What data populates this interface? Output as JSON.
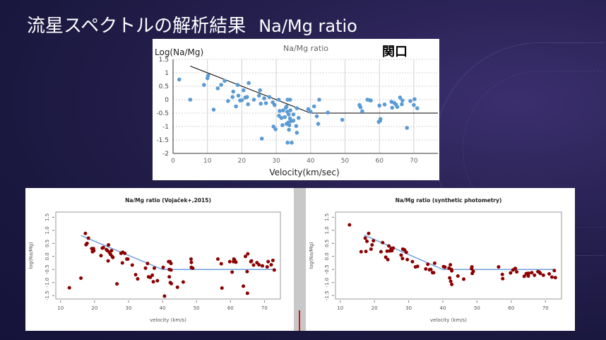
{
  "slide": {
    "title": "流星スペクトルの解析結果",
    "title_suffix": "Na/Mg ratio"
  },
  "colors": {
    "top_points": "#5b9bd5",
    "r_points": "#8b0000",
    "fit_line_top": "#000000",
    "fit_line_r": "#6fa0dc"
  },
  "chart_data": [
    {
      "type": "scatter",
      "title": "Na/Mg ratio",
      "annotation": "関口",
      "xlabel": "Velocity(km/sec)",
      "ylabel": "Log(Na/Mg)",
      "xlim": [
        0,
        77
      ],
      "ylim": [
        -2,
        1.5
      ],
      "xticks": [
        0,
        10,
        20,
        30,
        40,
        50,
        60,
        70
      ],
      "yticks": [
        -2,
        -1.5,
        -1,
        -0.5,
        0,
        0.5,
        1,
        1.5
      ],
      "grid": true,
      "fit_line": [
        [
          5,
          1.25
        ],
        [
          40,
          -0.5
        ],
        [
          77,
          -0.5
        ]
      ],
      "points": [
        [
          1.8,
          0.75
        ],
        [
          5,
          0
        ],
        [
          9,
          0.55
        ],
        [
          10,
          0.8
        ],
        [
          10.2,
          0.9
        ],
        [
          11.8,
          -0.37
        ],
        [
          13,
          0.42
        ],
        [
          14,
          0.55
        ],
        [
          15,
          0.7
        ],
        [
          16,
          -0.05
        ],
        [
          17.3,
          0.1
        ],
        [
          17.5,
          0.3
        ],
        [
          18.3,
          -0.25
        ],
        [
          18.8,
          0.55
        ],
        [
          19,
          0.15
        ],
        [
          19.5,
          -0.03
        ],
        [
          20,
          -0.02
        ],
        [
          20.5,
          0.35
        ],
        [
          21,
          0.08
        ],
        [
          21.5,
          0.1
        ],
        [
          21.8,
          -0.17
        ],
        [
          22,
          0.62
        ],
        [
          23.5,
          0
        ],
        [
          25,
          0.15
        ],
        [
          25.3,
          0.35
        ],
        [
          25.5,
          -0.15
        ],
        [
          25.8,
          -1.45
        ],
        [
          26.5,
          0.05
        ],
        [
          27,
          -0.13
        ],
        [
          28,
          0.1
        ],
        [
          29,
          -0.1
        ],
        [
          29.2,
          -1
        ],
        [
          29.5,
          -0.2
        ],
        [
          29.8,
          -1.1
        ],
        [
          30.7,
          0
        ],
        [
          30.8,
          -0.6
        ],
        [
          31,
          -0.42
        ],
        [
          31.5,
          -0.68
        ],
        [
          31.8,
          -0.95
        ],
        [
          32,
          -0.4
        ],
        [
          32.5,
          -0.65
        ],
        [
          32.8,
          -0.3
        ],
        [
          33,
          -0.25
        ],
        [
          33,
          -0.9
        ],
        [
          33.2,
          -0.45
        ],
        [
          33.3,
          -1.6
        ],
        [
          33.3,
          0
        ],
        [
          33.5,
          -0.85
        ],
        [
          33.6,
          -0.55
        ],
        [
          33.7,
          -1.12
        ],
        [
          33.8,
          -0.95
        ],
        [
          34,
          -0.7
        ],
        [
          34,
          0
        ],
        [
          34.1,
          -0.4
        ],
        [
          34.3,
          -0.8
        ],
        [
          34.5,
          -1.6
        ],
        [
          35,
          -0.55
        ],
        [
          35,
          -0.78
        ],
        [
          35.8,
          -0.98
        ],
        [
          36,
          -0.32
        ],
        [
          36,
          -1.23
        ],
        [
          36.5,
          -0.68
        ],
        [
          39.3,
          -0.35
        ],
        [
          40,
          -0.45
        ],
        [
          41,
          -0.25
        ],
        [
          41.8,
          -0.62
        ],
        [
          42.2,
          -0.9
        ],
        [
          42.5,
          0
        ],
        [
          45,
          -0.48
        ],
        [
          49.2,
          -0.75
        ],
        [
          54.2,
          -0.2
        ],
        [
          54.5,
          -0.28
        ],
        [
          55,
          -0.43
        ],
        [
          56.5,
          0
        ],
        [
          57.2,
          -0.02
        ],
        [
          57.5,
          -0.03
        ],
        [
          59.8,
          -0.83
        ],
        [
          60,
          -0.22
        ],
        [
          60.2,
          -0.78
        ],
        [
          60.3,
          -0.72
        ],
        [
          61.5,
          -0.18
        ],
        [
          63.5,
          -0.08
        ],
        [
          63.7,
          -0.3
        ],
        [
          64.3,
          -0.12
        ],
        [
          64.8,
          -0.18
        ],
        [
          65.2,
          -0.27
        ],
        [
          66,
          0.08
        ],
        [
          66.5,
          -0.17
        ],
        [
          66.7,
          -0.03
        ],
        [
          68,
          -1.05
        ],
        [
          69,
          -0.05
        ],
        [
          70,
          -0.2
        ],
        [
          70.2,
          0.02
        ],
        [
          71,
          -0.32
        ]
      ]
    },
    {
      "type": "scatter",
      "title": "Na/Mg ratio (Vojaček+,2015)",
      "xlabel": "velocity (km/s)",
      "ylabel": "log(Na/Mg)",
      "xlim": [
        8.6,
        74.7
      ],
      "ylim": [
        -1.63,
        1.7
      ],
      "xticks": [
        10,
        20,
        30,
        40,
        50,
        60,
        70
      ],
      "yticks": [
        -1.5,
        -1.0,
        -0.5,
        0.0,
        0.5,
        1.0,
        1.5
      ],
      "grid": false,
      "fit_line": [
        [
          16,
          0.8
        ],
        [
          40,
          -0.5
        ],
        [
          72.5,
          -0.5
        ]
      ],
      "points": [
        [
          12.6,
          -1.2
        ],
        [
          16,
          -0.83
        ],
        [
          17.3,
          0.88
        ],
        [
          17.5,
          0.45
        ],
        [
          17.8,
          0.5
        ],
        [
          18.2,
          0.7
        ],
        [
          19.2,
          0.3
        ],
        [
          19.4,
          0.18
        ],
        [
          19.7,
          0.3
        ],
        [
          19.8,
          0.22
        ],
        [
          21.9,
          0.03
        ],
        [
          22.3,
          0.32
        ],
        [
          22.6,
          0.34
        ],
        [
          23.5,
          0.26
        ],
        [
          23.8,
          0.22
        ],
        [
          24,
          -0.17
        ],
        [
          24.1,
          0.44
        ],
        [
          24.4,
          0.15
        ],
        [
          24.7,
          0.08
        ],
        [
          25,
          0.22
        ],
        [
          25.2,
          0
        ],
        [
          25.4,
          -0.04
        ],
        [
          26.6,
          -1.05
        ],
        [
          27.8,
          0.12
        ],
        [
          28.2,
          -0.25
        ],
        [
          28.3,
          0.16
        ],
        [
          28.9,
          0.12
        ],
        [
          29.5,
          -0.1
        ],
        [
          29.8,
          -0.1
        ],
        [
          31.1,
          -0.33
        ],
        [
          32.1,
          -0.7
        ],
        [
          32.7,
          -0.86
        ],
        [
          35,
          -0.45
        ],
        [
          35.6,
          -0.27
        ],
        [
          35.9,
          -0.78
        ],
        [
          36.4,
          -0.8
        ],
        [
          37,
          -0.72
        ],
        [
          37.3,
          -0.97
        ],
        [
          37.6,
          -0.45
        ],
        [
          38.5,
          -0.93
        ],
        [
          40.2,
          -0.42
        ],
        [
          40.6,
          -1.52
        ],
        [
          41.8,
          -0.2
        ],
        [
          42,
          -0.5
        ],
        [
          42,
          -0.78
        ],
        [
          42.2,
          -0.2
        ],
        [
          42.3,
          -1
        ],
        [
          42.5,
          -0.27
        ],
        [
          42.5,
          -0.52
        ],
        [
          42.6,
          -1.04
        ],
        [
          44.4,
          -1.18
        ],
        [
          46.1,
          -0.98
        ],
        [
          48.4,
          -0.1
        ],
        [
          48.5,
          -0.42
        ],
        [
          48.5,
          -0.23
        ],
        [
          48.9,
          -0.45
        ],
        [
          56.3,
          -0.1
        ],
        [
          57.3,
          -0.28
        ],
        [
          57.5,
          -1.21
        ],
        [
          59.8,
          -0.2
        ],
        [
          60.5,
          -0.6
        ],
        [
          60.9,
          -0.2
        ],
        [
          61,
          -0.1
        ],
        [
          61.2,
          -0.13
        ],
        [
          61.6,
          -0.22
        ],
        [
          63.8,
          -1.14
        ],
        [
          64.4,
          0
        ],
        [
          64.9,
          -0.58
        ],
        [
          65,
          -1.41
        ],
        [
          65.1,
          0.1
        ],
        [
          66,
          -0.2
        ],
        [
          66.2,
          -0.17
        ],
        [
          66.8,
          -0.33
        ],
        [
          67.8,
          -0.24
        ],
        [
          68.4,
          -0.32
        ],
        [
          69.4,
          -0.36
        ],
        [
          70.8,
          -0.4
        ],
        [
          71.1,
          -0.2
        ],
        [
          72,
          -0.32
        ],
        [
          72.5,
          -0.15
        ],
        [
          72.9,
          -0.52
        ]
      ]
    },
    {
      "type": "scatter",
      "title": "Na/Mg ratio (synthetic photometry)",
      "xlabel": "velocity (km/s)",
      "ylabel": "log(Na/Mg)",
      "xlim": [
        8.6,
        74.7
      ],
      "ylim": [
        -1.63,
        1.7
      ],
      "xticks": [
        10,
        20,
        30,
        40,
        50,
        60,
        70
      ],
      "yticks": [
        -1.5,
        -1.0,
        -0.5,
        0.0,
        0.5,
        1.0,
        1.5
      ],
      "grid": false,
      "fit_line": [
        [
          17,
          0.82
        ],
        [
          40,
          -0.5
        ],
        [
          72.5,
          -0.5
        ]
      ],
      "points": [
        [
          12.7,
          1.21
        ],
        [
          16.1,
          0.18
        ],
        [
          17.3,
          0.7
        ],
        [
          17.5,
          0.19
        ],
        [
          17.8,
          0.58
        ],
        [
          18.3,
          0.88
        ],
        [
          19,
          0.28
        ],
        [
          19.3,
          0.44
        ],
        [
          19.7,
          0.6
        ],
        [
          21.9,
          0.18
        ],
        [
          22.4,
          0.53
        ],
        [
          23.3,
          -0.03
        ],
        [
          23.7,
          0.2
        ],
        [
          23.9,
          -0.12
        ],
        [
          24.2,
          0.4
        ],
        [
          24.5,
          0.21
        ],
        [
          24.9,
          0.3
        ],
        [
          25.1,
          0.22
        ],
        [
          25.5,
          0.32
        ],
        [
          27.8,
          0.05
        ],
        [
          28.2,
          -0.08
        ],
        [
          28.3,
          0.28
        ],
        [
          28.8,
          0.25
        ],
        [
          29.3,
          0.16
        ],
        [
          29.6,
          -0.12
        ],
        [
          31.1,
          -0.2
        ],
        [
          32,
          -0.4
        ],
        [
          32.6,
          -0.38
        ],
        [
          35,
          -0.48
        ],
        [
          35.6,
          -0.3
        ],
        [
          36.1,
          -0.51
        ],
        [
          36.5,
          -0.5
        ],
        [
          37,
          -0.62
        ],
        [
          37.3,
          -0.62
        ],
        [
          37.6,
          -0.26
        ],
        [
          40.2,
          -0.39
        ],
        [
          40.6,
          -0.41
        ],
        [
          41.8,
          -0.45
        ],
        [
          42,
          -0.82
        ],
        [
          42.2,
          -0.32
        ],
        [
          42.3,
          -0.95
        ],
        [
          42.5,
          -0.5
        ],
        [
          42.6,
          -1.07
        ],
        [
          42.6,
          -0.55
        ],
        [
          44.4,
          -0.75
        ],
        [
          46.1,
          -0.87
        ],
        [
          48.4,
          -0.47
        ],
        [
          48.5,
          -0.4
        ],
        [
          48.6,
          -0.65
        ],
        [
          48.9,
          -0.57
        ],
        [
          56.3,
          -0.4
        ],
        [
          57.4,
          -0.69
        ],
        [
          57.5,
          -0.85
        ],
        [
          59.8,
          -0.63
        ],
        [
          60.5,
          -0.52
        ],
        [
          61,
          -0.48
        ],
        [
          61.2,
          -0.46
        ],
        [
          61.6,
          -0.59
        ],
        [
          63.8,
          -0.76
        ],
        [
          64.4,
          -0.66
        ],
        [
          64.9,
          -0.65
        ],
        [
          65,
          -0.75
        ],
        [
          65.1,
          -0.65
        ],
        [
          66,
          -0.62
        ],
        [
          66.8,
          -0.72
        ],
        [
          67.8,
          -0.58
        ],
        [
          68.2,
          -0.6
        ],
        [
          68.5,
          -0.65
        ],
        [
          69.4,
          -0.72
        ],
        [
          71.1,
          -0.67
        ],
        [
          71.9,
          -0.79
        ],
        [
          72.6,
          -0.54
        ],
        [
          72.9,
          -0.81
        ]
      ]
    }
  ]
}
